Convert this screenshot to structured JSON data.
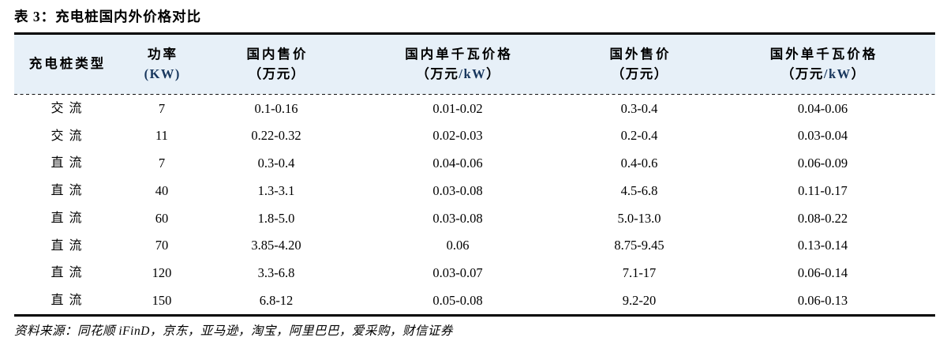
{
  "title": "表 3：充电桩国内外价格对比",
  "colors": {
    "header_bg": "#E7F0F8",
    "unit_latin_blue": "#17365D",
    "text": "#000000",
    "rule": "#000000"
  },
  "table": {
    "columns": [
      {
        "line1": "充电桩类型",
        "line2_pre": "",
        "line2_blue": "",
        "line2_post": ""
      },
      {
        "line1": "功率",
        "line2_pre": "",
        "line2_blue": "(KW)",
        "line2_post": ""
      },
      {
        "line1": "国内售价",
        "line2_pre": "（万元）",
        "line2_blue": "",
        "line2_post": ""
      },
      {
        "line1": "国内单千瓦价格",
        "line2_pre": "（万元",
        "line2_blue": "/kW",
        "line2_post": "）"
      },
      {
        "line1": "国外售价",
        "line2_pre": "（万元）",
        "line2_blue": "",
        "line2_post": ""
      },
      {
        "line1": "国外单千瓦价格",
        "line2_pre": "（万元",
        "line2_blue": "/kW",
        "line2_post": "）"
      }
    ],
    "rows": [
      [
        "交流",
        "7",
        "0.1-0.16",
        "0.01-0.02",
        "0.3-0.4",
        "0.04-0.06"
      ],
      [
        "交流",
        "11",
        "0.22-0.32",
        "0.02-0.03",
        "0.2-0.4",
        "0.03-0.04"
      ],
      [
        "直流",
        "7",
        "0.3-0.4",
        "0.04-0.06",
        "0.4-0.6",
        "0.06-0.09"
      ],
      [
        "直流",
        "40",
        "1.3-3.1",
        "0.03-0.08",
        "4.5-6.8",
        "0.11-0.17"
      ],
      [
        "直流",
        "60",
        "1.8-5.0",
        "0.03-0.08",
        "5.0-13.0",
        "0.08-0.22"
      ],
      [
        "直流",
        "70",
        "3.85-4.20",
        "0.06",
        "8.75-9.45",
        "0.13-0.14"
      ],
      [
        "直流",
        "120",
        "3.3-6.8",
        "0.03-0.07",
        "7.1-17",
        "0.06-0.14"
      ],
      [
        "直流",
        "150",
        "6.8-12",
        "0.05-0.08",
        "9.2-20",
        "0.06-0.13"
      ]
    ]
  },
  "footer": {
    "source": "资料来源：同花顺 iFinD，京东，亚马逊，淘宝，阿里巴巴，爱采购，财信证券"
  }
}
